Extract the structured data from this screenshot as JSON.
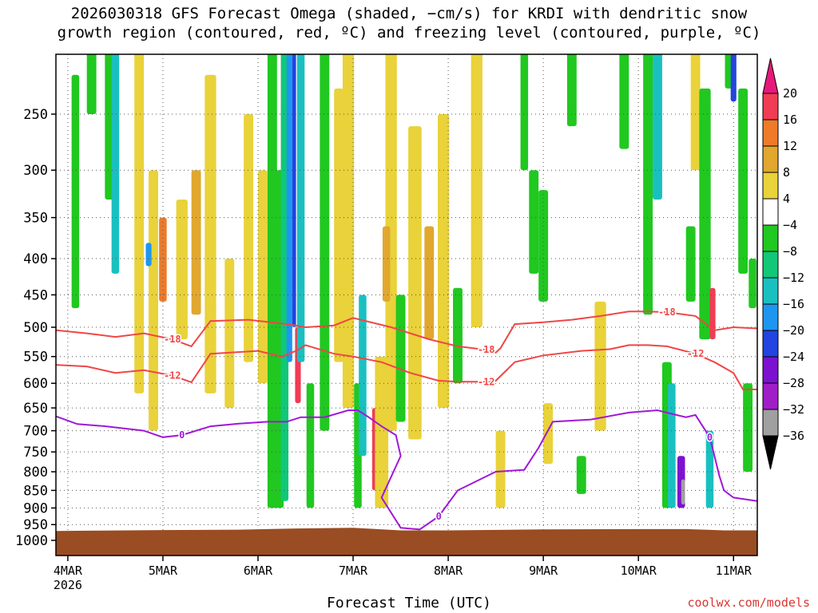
{
  "chart_data": {
    "type": "heatmap",
    "title_line1": "2026030318 GFS Forecast Omega (shaded, −cm/s) for KRDI with dendritic snow",
    "title_line2": "growth region (contoured, red, ºC) and freezing level (contoured, purple, ºC)",
    "xlabel": "Forecast Time (UTC)",
    "credit": "coolwx.com/models",
    "x_ticks": [
      {
        "label": "4MAR",
        "day": 4
      },
      {
        "label": "5MAR",
        "day": 5
      },
      {
        "label": "6MAR",
        "day": 6
      },
      {
        "label": "7MAR",
        "day": 7
      },
      {
        "label": "8MAR",
        "day": 8
      },
      {
        "label": "9MAR",
        "day": 9
      },
      {
        "label": "10MAR",
        "day": 10
      },
      {
        "label": "11MAR",
        "day": 11
      }
    ],
    "x_year_label": "2026",
    "xlim": [
      3.875,
      11.25
    ],
    "y_ticks": [
      250,
      300,
      350,
      400,
      450,
      500,
      550,
      600,
      650,
      700,
      750,
      800,
      850,
      900,
      950,
      1000
    ],
    "ylim_hPa": [
      200,
      1050
    ],
    "y_scale": "pressure",
    "grid": true,
    "colorbar": {
      "labels": [
        "20",
        "16",
        "12",
        "8",
        "4",
        "−4",
        "−8",
        "−12",
        "−16",
        "−20",
        "−24",
        "−28",
        "−32",
        "−36"
      ],
      "colors": [
        "#f03c55",
        "#ee7a2a",
        "#e1a72e",
        "#e9d23a",
        "#ffffff",
        "#20c820",
        "#10c878",
        "#1ac0c0",
        "#1e96f0",
        "#2244e0",
        "#7c12d0",
        "#a01ec8",
        "#a0a0a0"
      ],
      "top_arrow_color": "#e8187a",
      "bottom_arrow_color": "#000000"
    },
    "terrain_color": "#9a4c22",
    "terrain_top_hPa": 970,
    "contours": [
      {
        "label": "-18",
        "color": "#f04646",
        "x": [
          3.875,
          4.2,
          4.5,
          4.8,
          5.1,
          5.3,
          5.5,
          5.9,
          6.2,
          6.35,
          6.5,
          6.8,
          7.0,
          7.4,
          7.8,
          8.1,
          8.4,
          8.5,
          8.55,
          8.7,
          9.0,
          9.3,
          9.6,
          9.9,
          10.1,
          10.3,
          10.6,
          10.8,
          11.0,
          11.25
        ],
        "y": [
          505,
          510,
          516,
          510,
          520,
          532,
          490,
          488,
          493,
          496,
          500,
          497,
          485,
          500,
          520,
          532,
          538,
          543,
          535,
          495,
          492,
          488,
          482,
          475,
          475,
          476,
          482,
          505,
          500,
          502
        ]
      },
      {
        "label": "-12",
        "color": "#f04646",
        "x": [
          3.875,
          4.2,
          4.5,
          4.8,
          5.1,
          5.3,
          5.5,
          6.0,
          6.25,
          6.4,
          6.5,
          6.8,
          7.0,
          7.3,
          7.6,
          7.9,
          8.1,
          8.4,
          8.5,
          8.7,
          9.0,
          9.4,
          9.7,
          9.9,
          10.1,
          10.3,
          10.6,
          10.8,
          11.0,
          11.1,
          11.25
        ],
        "y": [
          565,
          568,
          580,
          575,
          585,
          598,
          545,
          540,
          550,
          540,
          530,
          545,
          550,
          560,
          580,
          595,
          597,
          597,
          595,
          560,
          548,
          540,
          537,
          530,
          530,
          532,
          545,
          560,
          580,
          612,
          612
        ]
      },
      {
        "label": "0",
        "color": "#a018d8",
        "x": [
          3.875,
          4.1,
          4.4,
          4.8,
          5.0,
          5.2,
          5.5,
          5.8,
          6.1,
          6.3,
          6.45,
          6.7,
          6.95,
          7.05,
          7.15,
          7.3,
          7.45,
          7.5,
          7.3,
          7.5,
          7.7,
          7.9,
          8.1,
          8.5,
          8.8,
          8.95,
          9.1,
          9.5,
          9.9,
          10.2,
          10.4,
          10.5,
          10.6,
          10.75,
          10.8,
          10.85,
          10.9,
          11.0,
          11.25
        ],
        "y": [
          668,
          685,
          690,
          700,
          715,
          710,
          690,
          684,
          680,
          680,
          670,
          670,
          655,
          655,
          668,
          690,
          710,
          760,
          870,
          960,
          965,
          925,
          850,
          800,
          795,
          740,
          680,
          675,
          660,
          655,
          665,
          670,
          665,
          715,
          760,
          810,
          850,
          870,
          880
        ]
      }
    ]
  }
}
